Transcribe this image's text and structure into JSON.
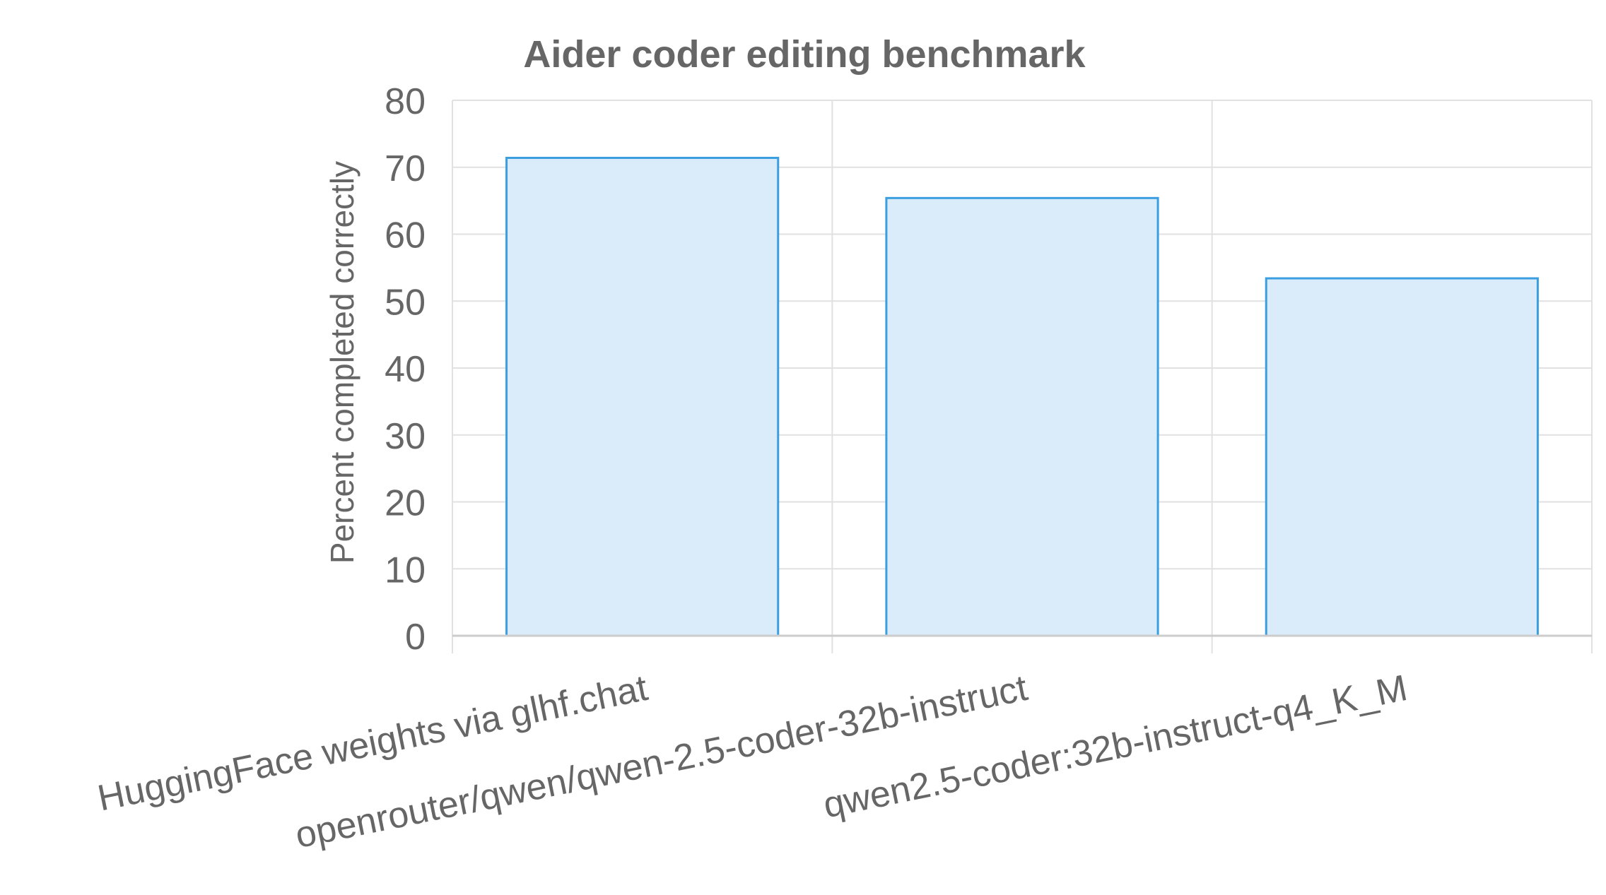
{
  "chart_data": {
    "type": "bar",
    "title": "Aider coder editing benchmark",
    "xlabel": "",
    "ylabel": "Percent completed correctly",
    "categories": [
      "HuggingFace weights via glhf.chat",
      "openrouter/qwen/qwen-2.5-coder-32b-instruct",
      "qwen2.5-coder:32b-instruct-q4_K_M"
    ],
    "values": [
      71.4,
      65.4,
      53.4
    ],
    "ylim": [
      0,
      80
    ],
    "yticks": [
      0,
      10,
      20,
      30,
      40,
      50,
      60,
      70,
      80
    ],
    "grid": true,
    "legend": "none",
    "colors": {
      "bar_fill": "#daebf9",
      "bar_stroke": "#3a9ee0",
      "grid": "#e1e1e1",
      "axis": "#cccccc",
      "text": "#666666"
    }
  }
}
